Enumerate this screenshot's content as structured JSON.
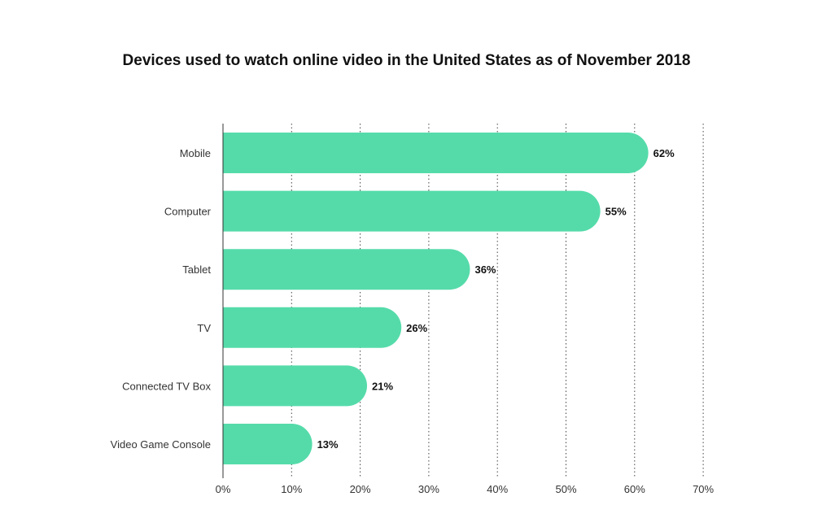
{
  "chart_data": {
    "type": "bar",
    "orientation": "horizontal",
    "title": "Devices used to watch online video in the United States as of November 2018",
    "categories": [
      "Mobile",
      "Computer",
      "Tablet",
      "TV",
      "Connected TV Box",
      "Video Game Console"
    ],
    "values": [
      62,
      55,
      36,
      26,
      21,
      13
    ],
    "value_labels": [
      "62%",
      "55%",
      "36%",
      "26%",
      "21%",
      "13%"
    ],
    "xticks": [
      0,
      10,
      20,
      30,
      40,
      50,
      60,
      70
    ],
    "xtick_labels": [
      "0%",
      "10%",
      "20%",
      "30%",
      "40%",
      "50%",
      "60%",
      "70%"
    ],
    "xlim": [
      0,
      70
    ],
    "xlabel": "",
    "ylabel": "",
    "grid": "vertical dotted",
    "bar_color": "#55dbaa",
    "bar_style": "rounded right end"
  }
}
